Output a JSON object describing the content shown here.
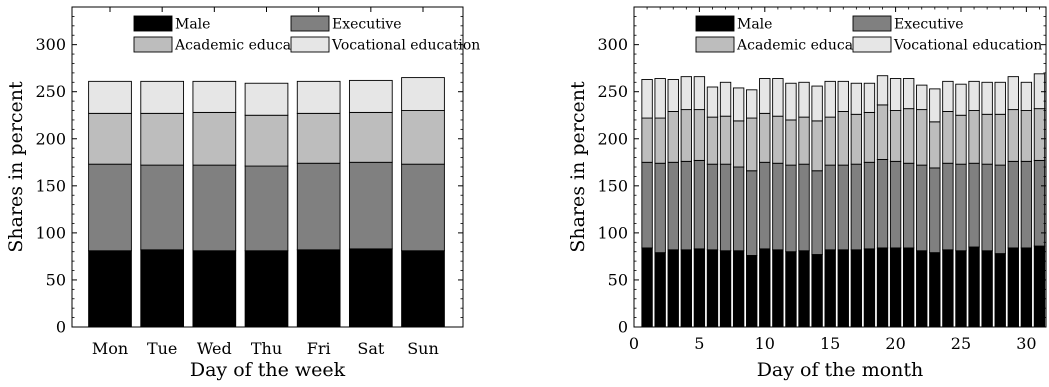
{
  "chart_data": [
    {
      "type": "bar",
      "stacked": true,
      "categories": [
        "Mon",
        "Tue",
        "Wed",
        "Thu",
        "Fri",
        "Sat",
        "Sun"
      ],
      "series": [
        {
          "name": "Male",
          "color": "#000000",
          "values": [
            81,
            82,
            81,
            81,
            82,
            83,
            81
          ]
        },
        {
          "name": "Executive",
          "color": "#808080",
          "values": [
            92,
            90,
            91,
            90,
            92,
            92,
            92
          ]
        },
        {
          "name": "Academic education",
          "color": "#bdbdbd",
          "values": [
            54,
            55,
            56,
            54,
            53,
            53,
            57
          ]
        },
        {
          "name": "Vocational education",
          "color": "#e6e6e6",
          "values": [
            34,
            34,
            33,
            34,
            34,
            34,
            35
          ]
        }
      ],
      "xlabel": "Day of the week",
      "ylabel": "Shares in percent",
      "ylim": [
        0,
        340
      ],
      "yticks": [
        0,
        50,
        100,
        150,
        200,
        250,
        300
      ],
      "legend_position": "top",
      "grid": false
    },
    {
      "type": "bar",
      "stacked": true,
      "x": [
        1,
        2,
        3,
        4,
        5,
        6,
        7,
        8,
        9,
        10,
        11,
        12,
        13,
        14,
        15,
        16,
        17,
        18,
        19,
        20,
        21,
        22,
        23,
        24,
        25,
        26,
        27,
        28,
        29,
        30,
        31
      ],
      "series": [
        {
          "name": "Male",
          "color": "#000000",
          "values": [
            84,
            79,
            82,
            82,
            83,
            82,
            81,
            81,
            76,
            83,
            82,
            80,
            81,
            77,
            82,
            82,
            82,
            83,
            84,
            84,
            84,
            81,
            79,
            82,
            81,
            85,
            81,
            78,
            84,
            84,
            86
          ]
        },
        {
          "name": "Executive",
          "color": "#808080",
          "values": [
            91,
            95,
            93,
            94,
            94,
            91,
            92,
            89,
            90,
            92,
            92,
            92,
            92,
            89,
            90,
            90,
            91,
            92,
            94,
            92,
            90,
            91,
            90,
            92,
            92,
            89,
            92,
            94,
            92,
            92,
            91
          ]
        },
        {
          "name": "Academic education",
          "color": "#bdbdbd",
          "values": [
            47,
            48,
            54,
            55,
            54,
            50,
            51,
            49,
            56,
            52,
            50,
            48,
            50,
            53,
            51,
            57,
            53,
            53,
            58,
            54,
            58,
            59,
            49,
            55,
            52,
            56,
            53,
            54,
            55,
            54,
            55
          ]
        },
        {
          "name": "Vocational education",
          "color": "#e6e6e6",
          "values": [
            41,
            42,
            34,
            35,
            35,
            32,
            36,
            35,
            30,
            37,
            40,
            39,
            37,
            37,
            38,
            32,
            33,
            31,
            31,
            34,
            32,
            26,
            35,
            32,
            33,
            31,
            34,
            34,
            35,
            30,
            37
          ]
        }
      ],
      "xlabel": "Day of the month",
      "ylabel": "Shares in percent",
      "xlim": [
        0,
        31.5
      ],
      "xticks": [
        0,
        5,
        10,
        15,
        20,
        25,
        30
      ],
      "ylim": [
        0,
        340
      ],
      "yticks": [
        0,
        50,
        100,
        150,
        200,
        250,
        300
      ],
      "legend_position": "top",
      "grid": false
    }
  ]
}
